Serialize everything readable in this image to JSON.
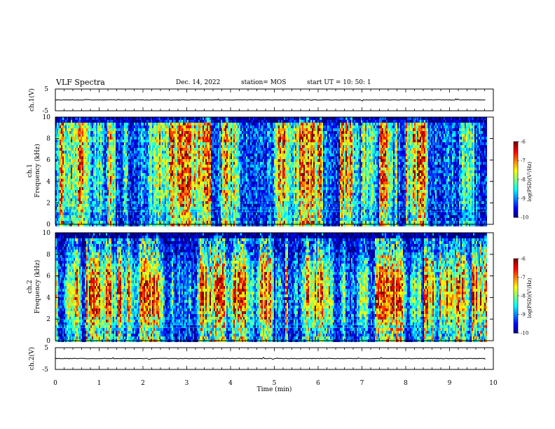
{
  "header": {
    "title": "VLF Spectra",
    "date": "Dec. 14, 2022",
    "station": "station= MOS",
    "start": "start  UT =   10: 50: 1"
  },
  "chart_data": [
    {
      "type": "line",
      "panel": "ch.1 waveform",
      "ylabel": "ch.1(V)",
      "ylim": [
        -5,
        5
      ],
      "yticks": [
        "5",
        "-5"
      ],
      "xlim": [
        0,
        10
      ],
      "series": [
        {
          "x": [
            0,
            9.83
          ],
          "values": [
            0,
            0
          ]
        }
      ]
    },
    {
      "type": "heatmap",
      "panel": "ch.1 spectrogram",
      "ylabel": "ch.1\nFrequency (kHz)",
      "ylim": [
        0,
        10
      ],
      "yticks": [
        "0",
        "2",
        "4",
        "6",
        "8",
        "10"
      ],
      "xlim": [
        0,
        10
      ],
      "data_extent_min": 9.83,
      "colorbar": {
        "label": "log(PSD)(V²/Hz)",
        "min": -10,
        "max": -6,
        "ticks": [
          "-6",
          "-7",
          "-8",
          "-9",
          "-10"
        ]
      }
    },
    {
      "type": "heatmap",
      "panel": "ch.2 spectrogram",
      "ylabel": "ch.2\nFrequency (kHz)",
      "ylim": [
        0,
        10
      ],
      "yticks": [
        "0",
        "2",
        "4",
        "6",
        "8",
        "10"
      ],
      "xlim": [
        0,
        10
      ],
      "data_extent_min": 9.83,
      "colorbar": {
        "label": "log(PSD)(V²/Hz)",
        "min": -10,
        "max": -6,
        "ticks": [
          "-6",
          "-7",
          "-8",
          "-9",
          "-10"
        ]
      }
    },
    {
      "type": "line",
      "panel": "ch.2 waveform",
      "ylabel": "ch.2(V)",
      "ylim": [
        -5,
        5
      ],
      "yticks": [
        "5",
        "-5"
      ],
      "xlim": [
        0,
        10
      ],
      "xlabel": "Time  (min)",
      "xticks": [
        "0",
        "1",
        "2",
        "3",
        "4",
        "5",
        "6",
        "7",
        "8",
        "9",
        "10"
      ],
      "series": [
        {
          "x": [
            0,
            9.83
          ],
          "values": [
            0,
            0
          ]
        }
      ]
    }
  ]
}
